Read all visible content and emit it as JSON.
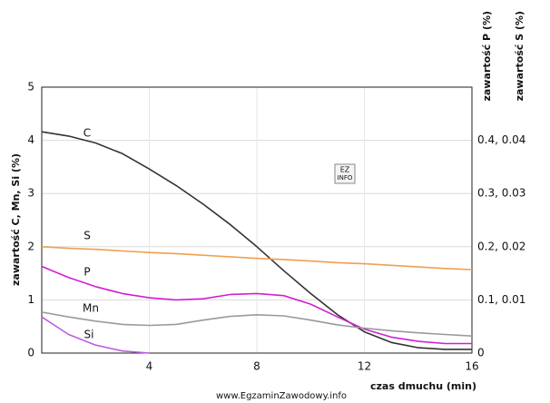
{
  "chart_data": {
    "type": "line",
    "y_label": "zawartość C, Mn, Si (%)",
    "y2_labels": [
      "zawartość P (%)",
      "zawartość S (%)"
    ],
    "x_label": "czas dmuchu (min)",
    "watermark": "www.EgzaminZawodowy.info",
    "logo": [
      "EZ",
      "INFO"
    ],
    "x": [
      0,
      1,
      2,
      3,
      4,
      5,
      6,
      7,
      8,
      9,
      10,
      11,
      12,
      13,
      14,
      15,
      16
    ],
    "series": [
      {
        "name": "C",
        "color": "#333333",
        "values": [
          4.16,
          4.08,
          3.95,
          3.75,
          3.46,
          3.15,
          2.8,
          2.42,
          2.0,
          1.55,
          1.12,
          0.72,
          0.4,
          0.2,
          0.1,
          0.07,
          0.07
        ]
      },
      {
        "name": "S",
        "color": "#f0a050",
        "values": [
          2.0,
          1.97,
          1.95,
          1.92,
          1.89,
          1.87,
          1.84,
          1.81,
          1.78,
          1.76,
          1.73,
          1.7,
          1.68,
          1.65,
          1.62,
          1.59,
          1.57
        ]
      },
      {
        "name": "P",
        "color": "#d21fd2",
        "values": [
          1.63,
          1.42,
          1.25,
          1.12,
          1.04,
          1.0,
          1.02,
          1.1,
          1.12,
          1.08,
          0.92,
          0.68,
          0.45,
          0.3,
          0.22,
          0.18,
          0.18
        ]
      },
      {
        "name": "Mn",
        "color": "#9a9a9a",
        "values": [
          0.77,
          0.68,
          0.6,
          0.54,
          0.52,
          0.54,
          0.62,
          0.69,
          0.72,
          0.7,
          0.62,
          0.53,
          0.47,
          0.42,
          0.38,
          0.35,
          0.32
        ]
      },
      {
        "name": "Si",
        "color": "#c05ce0",
        "values": [
          0.68,
          0.35,
          0.15,
          0.04,
          0.0,
          null,
          null,
          null,
          null,
          null,
          null,
          null,
          null,
          null,
          null,
          null,
          null
        ]
      }
    ],
    "xlim": [
      0,
      16
    ],
    "xticks": [
      4,
      8,
      12,
      16
    ],
    "ylim": [
      0,
      5
    ],
    "yticks": [
      0,
      1,
      2,
      3,
      4,
      5
    ],
    "y2lim": [
      0,
      5
    ],
    "y2ticks": [
      {
        "value": 0,
        "label": "0"
      },
      {
        "value": 1,
        "label": "0.1, 0.01"
      },
      {
        "value": 2,
        "label": "0.2, 0.02"
      },
      {
        "value": 3,
        "label": "0.3, 0.03"
      },
      {
        "value": 4,
        "label": "0.4, 0.04"
      }
    ],
    "grid": true
  }
}
